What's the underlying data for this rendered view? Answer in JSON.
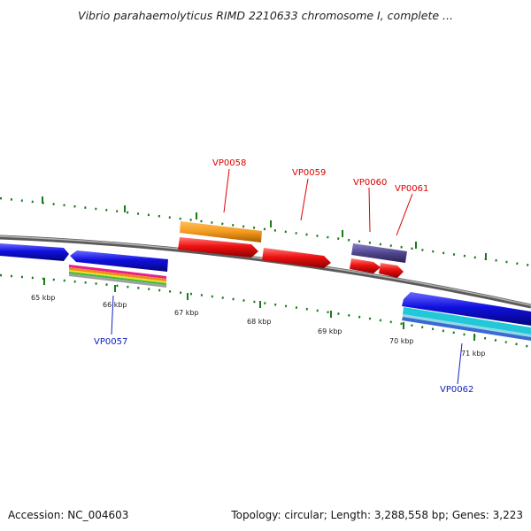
{
  "title": "Vibrio parahaemolyticus RIMD 2210633 chromosome I, complete ...",
  "footer": {
    "accession": "Accession: NC_004603",
    "summary": "Topology: circular; Length: 3,288,558 bp; Genes: 3,223"
  },
  "scale_labels": [
    "65 kbp",
    "66 kbp",
    "67 kbp",
    "68 kbp",
    "69 kbp",
    "70 kbp",
    "71 kbp"
  ],
  "gene_labels": {
    "VP0057": "VP0057",
    "VP0058": "VP0058",
    "VP0059": "VP0059",
    "VP0060": "VP0060",
    "VP0061": "VP0061",
    "VP0062": "VP0062"
  },
  "colors": {
    "backbone": "#7f7f7f",
    "tick": "#1a7a1a",
    "cds_blue": "#1010e0",
    "cds_red": "#ee1111",
    "orange": "#f39a1e",
    "purple": "#50458c",
    "cyan": "#22c8d8",
    "label_red": "#dd0000",
    "label_blue": "#1020c0"
  }
}
